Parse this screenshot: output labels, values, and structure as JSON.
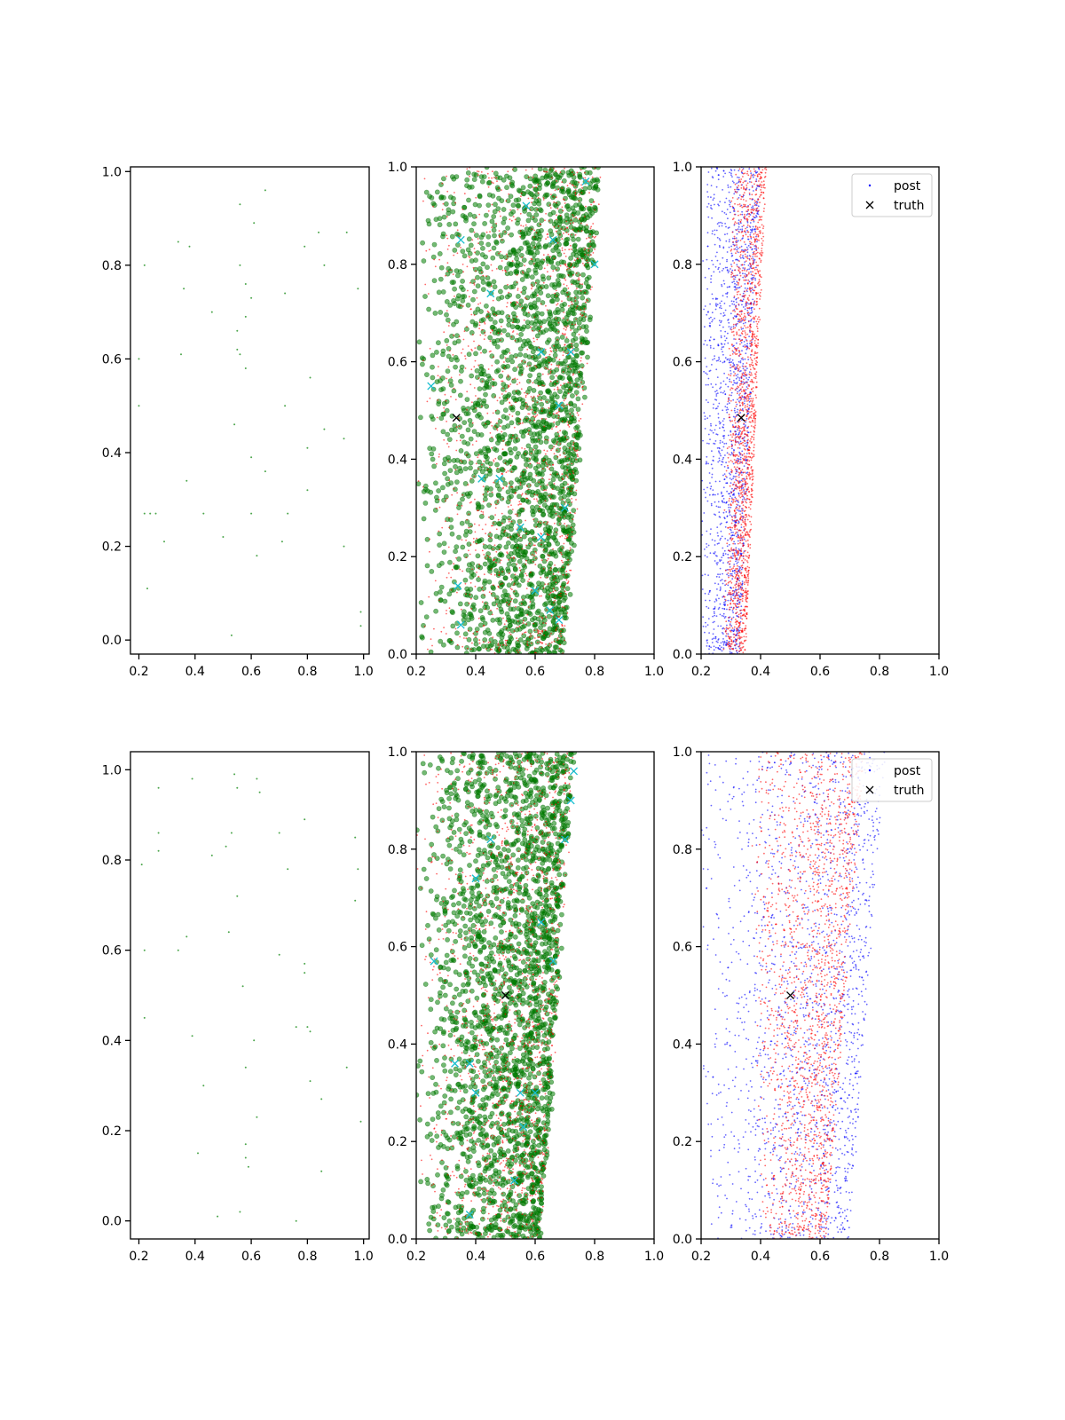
{
  "colors": {
    "background": "#ffffff",
    "axis": "#000000",
    "green": "#008000",
    "red": "#ff0000",
    "blue": "#0000ff",
    "cyan": "#17becf",
    "black": "#000000"
  },
  "legend": {
    "items": [
      "post",
      "truth"
    ]
  },
  "chart_data": [
    {
      "panel": "row1-col1",
      "type": "scatter",
      "xlim": [
        0.17,
        1.02
      ],
      "ylim": [
        -0.03,
        1.01
      ],
      "xticks": [
        0.2,
        0.4,
        0.6,
        0.8,
        1.0
      ],
      "xtick_labels": [
        "0.2",
        "0.4",
        "0.6",
        "0.8",
        "1.0"
      ],
      "yticks": [
        0.0,
        0.2,
        0.4,
        0.6,
        0.8,
        1.0
      ],
      "ytick_labels": [
        "0.0",
        "0.2",
        "0.4",
        "0.6",
        "0.8",
        "1.0"
      ],
      "series": [
        {
          "color": "#008000",
          "marker": "dot",
          "points": [
            [
              0.65,
              0.96
            ],
            [
              0.56,
              0.93
            ],
            [
              0.61,
              0.89
            ],
            [
              0.34,
              0.85
            ],
            [
              0.38,
              0.84
            ],
            [
              0.79,
              0.84
            ],
            [
              0.84,
              0.87
            ],
            [
              0.94,
              0.87
            ],
            [
              0.22,
              0.8
            ],
            [
              0.56,
              0.8
            ],
            [
              0.86,
              0.8
            ],
            [
              0.58,
              0.76
            ],
            [
              0.36,
              0.75
            ],
            [
              0.72,
              0.74
            ],
            [
              0.98,
              0.75
            ],
            [
              0.6,
              0.73
            ],
            [
              0.46,
              0.7
            ],
            [
              0.58,
              0.69
            ],
            [
              0.55,
              0.66
            ],
            [
              0.2,
              0.6
            ],
            [
              0.35,
              0.61
            ],
            [
              0.55,
              0.62
            ],
            [
              0.56,
              0.61
            ],
            [
              0.58,
              0.58
            ],
            [
              0.81,
              0.56
            ],
            [
              0.2,
              0.5
            ],
            [
              0.72,
              0.5
            ],
            [
              0.54,
              0.46
            ],
            [
              0.86,
              0.45
            ],
            [
              0.93,
              0.43
            ],
            [
              0.8,
              0.41
            ],
            [
              0.6,
              0.39
            ],
            [
              0.65,
              0.36
            ],
            [
              0.37,
              0.34
            ],
            [
              0.8,
              0.32
            ],
            [
              0.22,
              0.27
            ],
            [
              0.24,
              0.27
            ],
            [
              0.26,
              0.27
            ],
            [
              0.43,
              0.27
            ],
            [
              0.6,
              0.27
            ],
            [
              0.73,
              0.27
            ],
            [
              0.29,
              0.21
            ],
            [
              0.5,
              0.22
            ],
            [
              0.71,
              0.21
            ],
            [
              0.93,
              0.2
            ],
            [
              0.62,
              0.18
            ],
            [
              0.23,
              0.11
            ],
            [
              0.99,
              0.06
            ],
            [
              0.99,
              0.03
            ],
            [
              0.53,
              0.01
            ]
          ]
        }
      ]
    },
    {
      "panel": "row1-col2",
      "type": "scatter",
      "xlim": [
        0.2,
        1.0
      ],
      "ylim": [
        0.0,
        1.0
      ],
      "xticks": [
        0.2,
        0.4,
        0.6,
        0.8,
        1.0
      ],
      "xtick_labels": [
        "0.2",
        "0.4",
        "0.6",
        "0.8",
        "1.0"
      ],
      "yticks": [
        0.0,
        0.2,
        0.4,
        0.6,
        0.8,
        1.0
      ],
      "ytick_labels": [
        "0.0",
        "0.2",
        "0.4",
        "0.6",
        "0.8",
        "1.0"
      ],
      "density_bands": [
        {
          "color": "#008000",
          "marker": "circle",
          "count": 2200,
          "x_min": 0.2,
          "x_right_at_y0": 0.7,
          "x_right_at_y1": 0.82
        },
        {
          "color": "#ff0000",
          "marker": "dot",
          "count": 1400,
          "x_min": 0.2,
          "x_right_at_y0": 0.7,
          "x_right_at_y1": 0.82
        }
      ],
      "series": [
        {
          "color": "#17becf",
          "marker": "x",
          "points": [
            [
              0.25,
              0.55
            ],
            [
              0.42,
              0.36
            ],
            [
              0.48,
              0.36
            ],
            [
              0.45,
              0.74
            ],
            [
              0.57,
              0.92
            ],
            [
              0.62,
              0.62
            ],
            [
              0.35,
              0.85
            ],
            [
              0.34,
              0.14
            ],
            [
              0.35,
              0.06
            ],
            [
              0.55,
              0.26
            ],
            [
              0.6,
              0.13
            ],
            [
              0.65,
              0.09
            ],
            [
              0.68,
              0.07
            ],
            [
              0.7,
              0.3
            ],
            [
              0.66,
              0.85
            ],
            [
              0.8,
              0.8
            ],
            [
              0.77,
              0.97
            ],
            [
              0.62,
              0.24
            ],
            [
              0.72,
              0.62
            ],
            [
              0.68,
              0.51
            ]
          ]
        },
        {
          "color": "#000000",
          "marker": "x",
          "points": [
            [
              0.335,
              0.485
            ]
          ]
        }
      ]
    },
    {
      "panel": "row1-col3",
      "type": "scatter",
      "xlim": [
        0.2,
        1.0
      ],
      "ylim": [
        0.0,
        1.0
      ],
      "xticks": [
        0.2,
        0.4,
        0.6,
        0.8,
        1.0
      ],
      "xtick_labels": [
        "0.2",
        "0.4",
        "0.6",
        "0.8",
        "1.0"
      ],
      "yticks": [
        0.0,
        0.2,
        0.4,
        0.6,
        0.8,
        1.0
      ],
      "ytick_labels": [
        "0.0",
        "0.2",
        "0.4",
        "0.6",
        "0.8",
        "1.0"
      ],
      "legend": [
        "post",
        "truth"
      ],
      "density_bands": [
        {
          "color": "#0000ff",
          "marker": "dot",
          "count": 1500,
          "x_min_at_y0": 0.2,
          "x_max_at_y0": 0.33,
          "x_min_at_y1": 0.2,
          "x_max_at_y1": 0.4
        },
        {
          "color": "#ff0000",
          "marker": "dot",
          "count": 1600,
          "x_min_at_y0": 0.27,
          "x_max_at_y0": 0.35,
          "x_min_at_y1": 0.3,
          "x_max_at_y1": 0.42
        }
      ],
      "series": [
        {
          "color": "#000000",
          "marker": "x",
          "points": [
            [
              0.335,
              0.485
            ]
          ]
        }
      ]
    },
    {
      "panel": "row2-col1",
      "type": "scatter",
      "xlim": [
        0.17,
        1.02
      ],
      "ylim": [
        -0.04,
        1.04
      ],
      "xticks": [
        0.2,
        0.4,
        0.6,
        0.8,
        1.0
      ],
      "xtick_labels": [
        "0.2",
        "0.4",
        "0.6",
        "0.8",
        "1.0"
      ],
      "yticks": [
        0.0,
        0.2,
        0.4,
        0.6,
        0.8,
        1.0
      ],
      "ytick_labels": [
        "0.0",
        "0.2",
        "0.4",
        "0.6",
        "0.8",
        "1.0"
      ],
      "series": [
        {
          "color": "#008000",
          "marker": "dot",
          "points": [
            [
              0.54,
              0.99
            ],
            [
              0.62,
              0.98
            ],
            [
              0.27,
              0.96
            ],
            [
              0.39,
              0.98
            ],
            [
              0.55,
              0.96
            ],
            [
              0.63,
              0.95
            ],
            [
              0.27,
              0.86
            ],
            [
              0.53,
              0.86
            ],
            [
              0.7,
              0.86
            ],
            [
              0.97,
              0.85
            ],
            [
              0.21,
              0.79
            ],
            [
              0.27,
              0.82
            ],
            [
              0.46,
              0.81
            ],
            [
              0.51,
              0.83
            ],
            [
              0.73,
              0.78
            ],
            [
              0.79,
              0.89
            ],
            [
              0.98,
              0.78
            ],
            [
              0.55,
              0.72
            ],
            [
              0.97,
              0.71
            ],
            [
              0.52,
              0.64
            ],
            [
              0.37,
              0.63
            ],
            [
              0.34,
              0.6
            ],
            [
              0.22,
              0.6
            ],
            [
              0.7,
              0.59
            ],
            [
              0.79,
              0.57
            ],
            [
              0.79,
              0.55
            ],
            [
              0.57,
              0.52
            ],
            [
              0.22,
              0.45
            ],
            [
              0.76,
              0.43
            ],
            [
              0.8,
              0.43
            ],
            [
              0.81,
              0.42
            ],
            [
              0.39,
              0.41
            ],
            [
              0.61,
              0.4
            ],
            [
              0.58,
              0.34
            ],
            [
              0.94,
              0.34
            ],
            [
              0.81,
              0.31
            ],
            [
              0.43,
              0.3
            ],
            [
              0.85,
              0.27
            ],
            [
              0.62,
              0.23
            ],
            [
              0.99,
              0.22
            ],
            [
              0.58,
              0.17
            ],
            [
              0.41,
              0.15
            ],
            [
              0.58,
              0.14
            ],
            [
              0.59,
              0.12
            ],
            [
              0.85,
              0.11
            ],
            [
              0.48,
              0.01
            ],
            [
              0.56,
              0.02
            ],
            [
              0.76,
              0.0
            ]
          ]
        }
      ]
    },
    {
      "panel": "row2-col2",
      "type": "scatter",
      "xlim": [
        0.2,
        1.0
      ],
      "ylim": [
        0.0,
        1.0
      ],
      "xticks": [
        0.2,
        0.4,
        0.6,
        0.8,
        1.0
      ],
      "xtick_labels": [
        "0.2",
        "0.4",
        "0.6",
        "0.8",
        "1.0"
      ],
      "yticks": [
        0.0,
        0.2,
        0.4,
        0.6,
        0.8,
        1.0
      ],
      "ytick_labels": [
        "0.0",
        "0.2",
        "0.4",
        "0.6",
        "0.8",
        "1.0"
      ],
      "density_bands": [
        {
          "color": "#008000",
          "marker": "circle",
          "count": 2200,
          "x_min": 0.2,
          "x_right_at_y0": 0.62,
          "x_right_at_y1": 0.73
        },
        {
          "color": "#ff0000",
          "marker": "dot",
          "count": 1400,
          "x_min": 0.2,
          "x_right_at_y0": 0.62,
          "x_right_at_y1": 0.73
        }
      ],
      "series": [
        {
          "color": "#17becf",
          "marker": "x",
          "points": [
            [
              0.26,
              0.57
            ],
            [
              0.4,
              0.74
            ],
            [
              0.45,
              0.82
            ],
            [
              0.73,
              0.96
            ],
            [
              0.7,
              0.82
            ],
            [
              0.72,
              0.9
            ],
            [
              0.62,
              0.65
            ],
            [
              0.33,
              0.36
            ],
            [
              0.38,
              0.36
            ],
            [
              0.4,
              0.3
            ],
            [
              0.38,
              0.05
            ],
            [
              0.53,
              0.12
            ],
            [
              0.56,
              0.23
            ],
            [
              0.6,
              0.3
            ],
            [
              0.55,
              0.3
            ],
            [
              0.66,
              0.57
            ]
          ]
        },
        {
          "color": "#000000",
          "marker": "x",
          "points": [
            [
              0.5,
              0.5
            ]
          ]
        }
      ]
    },
    {
      "panel": "row2-col3",
      "type": "scatter",
      "xlim": [
        0.2,
        1.0
      ],
      "ylim": [
        0.0,
        1.0
      ],
      "xticks": [
        0.2,
        0.4,
        0.6,
        0.8,
        1.0
      ],
      "xtick_labels": [
        "0.2",
        "0.4",
        "0.6",
        "0.8",
        "1.0"
      ],
      "yticks": [
        0.0,
        0.2,
        0.4,
        0.6,
        0.8,
        1.0
      ],
      "ytick_labels": [
        "0.0",
        "0.2",
        "0.4",
        "0.6",
        "0.8",
        "1.0"
      ],
      "legend": [
        "post",
        "truth"
      ],
      "density_bands": [
        {
          "color": "#0000ff",
          "marker": "dot",
          "count": 1800,
          "x_min_at_y0": 0.2,
          "x_max_at_y0": 0.7,
          "x_min_at_y1": 0.2,
          "x_max_at_y1": 0.82
        },
        {
          "color": "#ff0000",
          "marker": "dot",
          "count": 1800,
          "x_min_at_y0": 0.4,
          "x_max_at_y0": 0.62,
          "x_min_at_y1": 0.35,
          "x_max_at_y1": 0.75
        }
      ],
      "series": [
        {
          "color": "#000000",
          "marker": "x",
          "points": [
            [
              0.5,
              0.5
            ]
          ]
        }
      ]
    }
  ]
}
